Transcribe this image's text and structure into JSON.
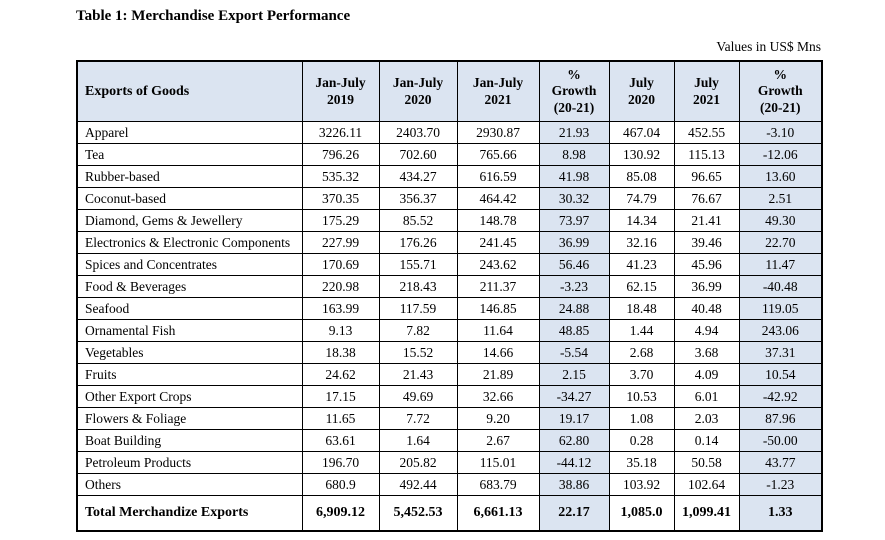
{
  "page": {
    "title": "Table 1: Merchandise Export Performance",
    "units_note": "Values in US$ Mns"
  },
  "colors": {
    "header_bg": "#dbe4f1",
    "growth_column_bg": "#dbe4f1",
    "border": "#000000",
    "text": "#000000",
    "page_bg": "#ffffff"
  },
  "table": {
    "columns": [
      "Exports of Goods",
      "Jan-July\n2019",
      "Jan-July\n2020",
      "Jan-July\n2021",
      "%\nGrowth\n(20-21)",
      "July\n2020",
      "July\n2021",
      "%\nGrowth\n(20-21)"
    ],
    "rows": [
      {
        "label": "Apparel",
        "values": [
          "3226.11",
          "2403.70",
          "2930.87",
          "21.93",
          "467.04",
          "452.55",
          "-3.10"
        ]
      },
      {
        "label": "Tea",
        "values": [
          "796.26",
          "702.60",
          "765.66",
          "8.98",
          "130.92",
          "115.13",
          "-12.06"
        ]
      },
      {
        "label": "Rubber-based",
        "values": [
          "535.32",
          "434.27",
          "616.59",
          "41.98",
          "85.08",
          "96.65",
          "13.60"
        ]
      },
      {
        "label": "Coconut-based",
        "values": [
          "370.35",
          "356.37",
          "464.42",
          "30.32",
          "74.79",
          "76.67",
          "2.51"
        ]
      },
      {
        "label": "Diamond, Gems & Jewellery",
        "values": [
          "175.29",
          "85.52",
          "148.78",
          "73.97",
          "14.34",
          "21.41",
          "49.30"
        ]
      },
      {
        "label": "Electronics & Electronic Components",
        "label_justify": true,
        "values": [
          "227.99",
          "176.26",
          "241.45",
          "36.99",
          "32.16",
          "39.46",
          "22.70"
        ]
      },
      {
        "label": "Spices and Concentrates",
        "values": [
          "170.69",
          "155.71",
          "243.62",
          "56.46",
          "41.23",
          "45.96",
          "11.47"
        ]
      },
      {
        "label": "Food & Beverages",
        "values": [
          "220.98",
          "218.43",
          "211.37",
          "-3.23",
          "62.15",
          "36.99",
          "-40.48"
        ]
      },
      {
        "label": "Seafood",
        "values": [
          "163.99",
          "117.59",
          "146.85",
          "24.88",
          "18.48",
          "40.48",
          "119.05"
        ]
      },
      {
        "label": "Ornamental Fish",
        "values": [
          "9.13",
          "7.82",
          "11.64",
          "48.85",
          "1.44",
          "4.94",
          "243.06"
        ]
      },
      {
        "label": "Vegetables",
        "values": [
          "18.38",
          "15.52",
          "14.66",
          "-5.54",
          "2.68",
          "3.68",
          "37.31"
        ]
      },
      {
        "label": "Fruits",
        "values": [
          "24.62",
          "21.43",
          "21.89",
          "2.15",
          "3.70",
          "4.09",
          "10.54"
        ]
      },
      {
        "label": "Other Export Crops",
        "values": [
          "17.15",
          "49.69",
          "32.66",
          "-34.27",
          "10.53",
          "6.01",
          "-42.92"
        ]
      },
      {
        "label": "Flowers & Foliage",
        "values": [
          "11.65",
          "7.72",
          "9.20",
          "19.17",
          "1.08",
          "2.03",
          "87.96"
        ]
      },
      {
        "label": "Boat Building",
        "values": [
          "63.61",
          "1.64",
          "2.67",
          "62.80",
          "0.28",
          "0.14",
          "-50.00"
        ]
      },
      {
        "label": "Petroleum Products",
        "values": [
          "196.70",
          "205.82",
          "115.01",
          "-44.12",
          "35.18",
          "50.58",
          "43.77"
        ]
      },
      {
        "label": "Others",
        "values": [
          "680.9",
          "492.44",
          "683.79",
          "38.86",
          "103.92",
          "102.64",
          "-1.23"
        ]
      },
      {
        "label": "Total Merchandize Exports",
        "is_total": true,
        "values": [
          "6,909.12",
          "5,452.53",
          "6,661.13",
          "22.17",
          "1,085.0",
          "1,099.41",
          "1.33"
        ]
      }
    ]
  }
}
